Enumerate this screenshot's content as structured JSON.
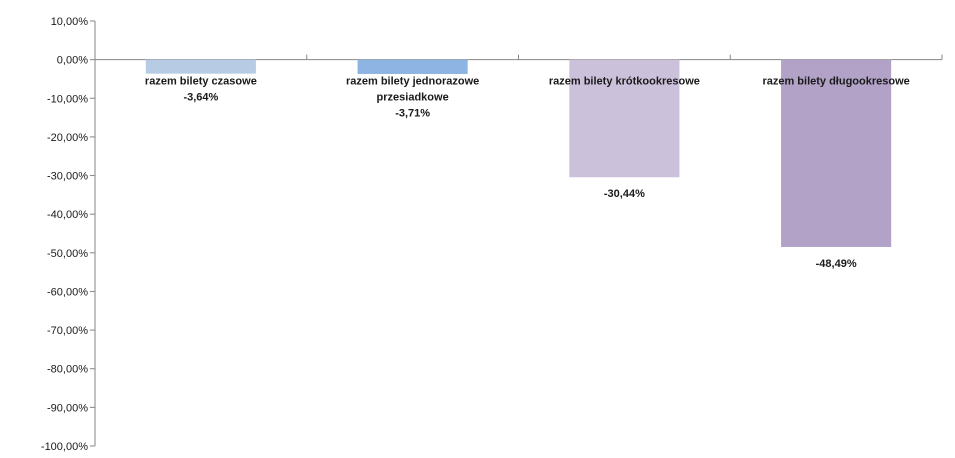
{
  "chart_data": {
    "type": "bar",
    "title": "",
    "xlabel": "",
    "ylabel": "",
    "ylim": [
      -100,
      10
    ],
    "y_tick_step": 10,
    "y_tick_labels": [
      "10,00%",
      "0,00%",
      "-10,00%",
      "-20,00%",
      "-30,00%",
      "-40,00%",
      "-50,00%",
      "-60,00%",
      "-70,00%",
      "-80,00%",
      "-90,00%",
      "-100,00%"
    ],
    "grid": false,
    "legend": "none",
    "categories": [
      [
        "razem bilety czasowe"
      ],
      [
        "razem bilety jednorazowe",
        "przesiadkowe"
      ],
      [
        "razem bilety krótkookresowe"
      ],
      [
        "razem bilety długookresowe"
      ]
    ],
    "values": [
      -3.64,
      -3.71,
      -30.44,
      -48.49
    ],
    "data_labels": [
      "-3,64%",
      "-3,71%",
      "-30,44%",
      "-48,49%"
    ],
    "colors": [
      "#B7CCE4",
      "#8EB4E3",
      "#CCC1DA",
      "#B2A2C7"
    ]
  }
}
